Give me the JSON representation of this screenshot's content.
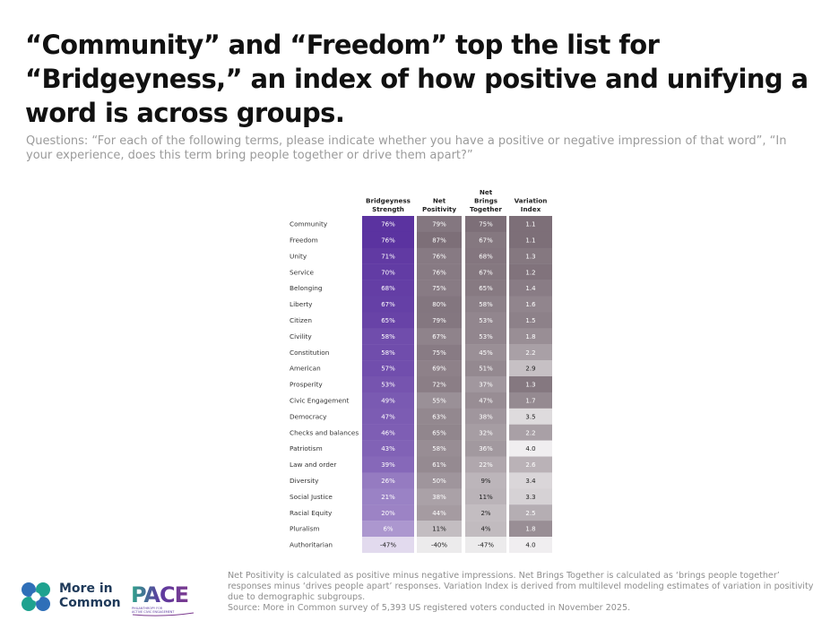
{
  "header": {
    "title": "“Community” and “Freedom” top the list for “Bridgeyness,” an index of how positive and unifying a word is across groups.",
    "subtitle": "Questions: “For each of the following terms, please indicate whether you have a positive or negative impression of that word”, “In your experience, does this term bring people together or drive them apart?”"
  },
  "chart_data": {
    "type": "table",
    "columns": [
      "Bridgeyness Strength",
      "Net Positivity",
      "Net Brings Together",
      "Variation Index"
    ],
    "rows": [
      {
        "term": "Community",
        "cells": [
          "76%",
          "79%",
          "75%",
          "1.1"
        ]
      },
      {
        "term": "Freedom",
        "cells": [
          "76%",
          "87%",
          "67%",
          "1.1"
        ]
      },
      {
        "term": "Unity",
        "cells": [
          "71%",
          "76%",
          "68%",
          "1.3"
        ]
      },
      {
        "term": "Service",
        "cells": [
          "70%",
          "76%",
          "67%",
          "1.2"
        ]
      },
      {
        "term": "Belonging",
        "cells": [
          "68%",
          "75%",
          "65%",
          "1.4"
        ]
      },
      {
        "term": "Liberty",
        "cells": [
          "67%",
          "80%",
          "58%",
          "1.6"
        ]
      },
      {
        "term": "Citizen",
        "cells": [
          "65%",
          "79%",
          "53%",
          "1.5"
        ]
      },
      {
        "term": "Civility",
        "cells": [
          "58%",
          "67%",
          "53%",
          "1.8"
        ]
      },
      {
        "term": "Constitution",
        "cells": [
          "58%",
          "75%",
          "45%",
          "2.2"
        ]
      },
      {
        "term": "American",
        "cells": [
          "57%",
          "69%",
          "51%",
          "2.9"
        ]
      },
      {
        "term": "Prosperity",
        "cells": [
          "53%",
          "72%",
          "37%",
          "1.3"
        ]
      },
      {
        "term": "Civic Engagement",
        "cells": [
          "49%",
          "55%",
          "47%",
          "1.7"
        ]
      },
      {
        "term": "Democracy",
        "cells": [
          "47%",
          "63%",
          "38%",
          "3.5"
        ]
      },
      {
        "term": "Checks and balances",
        "cells": [
          "46%",
          "65%",
          "32%",
          "2.2"
        ]
      },
      {
        "term": "Patriotism",
        "cells": [
          "43%",
          "58%",
          "36%",
          "4.0"
        ]
      },
      {
        "term": "Law and order",
        "cells": [
          "39%",
          "61%",
          "22%",
          "2.6"
        ]
      },
      {
        "term": "Diversity",
        "cells": [
          "26%",
          "50%",
          "9%",
          "3.4"
        ]
      },
      {
        "term": "Social Justice",
        "cells": [
          "21%",
          "38%",
          "11%",
          "3.3"
        ]
      },
      {
        "term": "Racial Equity",
        "cells": [
          "20%",
          "44%",
          "2%",
          "2.5"
        ]
      },
      {
        "term": "Pluralism",
        "cells": [
          "6%",
          "11%",
          "4%",
          "1.8"
        ]
      },
      {
        "term": "Authoritarian",
        "cells": [
          "-47%",
          "-40%",
          "-47%",
          "4.0"
        ]
      }
    ],
    "colors": {
      "bridgeyness_dark": "#5b33a0",
      "bridgeyness_light": "#e9e3f2",
      "gray_dark": "#7d6f78",
      "gray_light": "#f2f1f2"
    }
  },
  "footnote": {
    "line1": "Net Positivity is calculated as positive minus negative impressions. Net Brings Together is calculated as ‘brings people together’ responses minus ‘drives people apart’ responses. Variation Index is derived from multilevel modeling estimates of variation in positivity due to demographic subgroups.",
    "source": "Source: More in Common survey of 5,393 US registered voters conducted in November 2025."
  },
  "logos": {
    "moc_text": "More in\nCommon",
    "pace_text": "PACE",
    "pace_tagline": "PHILANTHROPY FOR ACTIVE CIVIC ENGAGEMENT"
  }
}
